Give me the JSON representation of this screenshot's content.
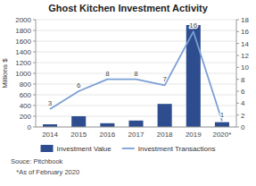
{
  "chart_data": {
    "type": "bar",
    "title": "Ghost Kitchen Investment Activity",
    "categories": [
      "2014",
      "2015",
      "2016",
      "2017",
      "2018",
      "2019",
      "2020*"
    ],
    "series": [
      {
        "name": "Investment Value",
        "type": "bar",
        "color": "#2e4d8e",
        "values": [
          50,
          200,
          70,
          120,
          430,
          1900,
          90
        ]
      },
      {
        "name": "Investment Transactions",
        "type": "line",
        "color": "#7a9fd4",
        "axis": "y2",
        "data_labels": true,
        "values": [
          3,
          6,
          8,
          8,
          7,
          16,
          1
        ]
      }
    ],
    "ylabel": "Millions $",
    "ylim": [
      0,
      2000
    ],
    "yticks": [
      0,
      200,
      400,
      600,
      800,
      1000,
      1200,
      1400,
      1600,
      1800,
      2000
    ],
    "y2lim": [
      0,
      18
    ],
    "y2ticks": [
      0,
      2,
      4,
      6,
      8,
      10,
      12,
      14,
      16,
      18
    ],
    "grid": true,
    "legend": "bottom",
    "annotations": [
      "Souce: Pitchbook",
      "   *As of February 2020"
    ]
  }
}
